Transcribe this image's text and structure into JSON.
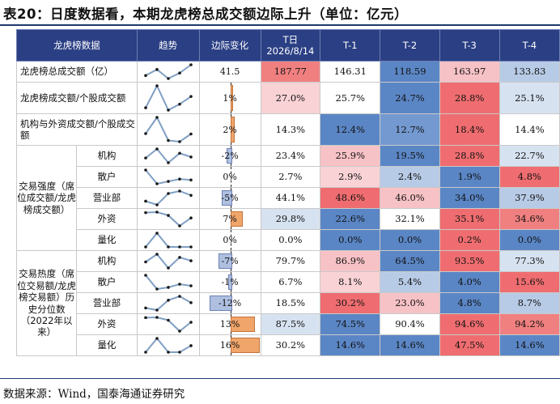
{
  "title": "表20：日度数据看，本期龙虎榜总成交额边际上升（单位：亿元）",
  "source": "数据来源：Wind，国泰海通证券研究",
  "header": {
    "name": "龙虎榜数据",
    "trend": "趋势",
    "change": "边际变化",
    "t0_line1": "T日",
    "t0_line2": "2026/8/14",
    "t1": "T-1",
    "t2": "T-2",
    "t3": "T-3",
    "t4": "T-4"
  },
  "groups": {
    "strength": "交易强度（席位成交额/龙虎榜成交额）",
    "heat": "交易热度（席位交易额/龙虎榜交易额）历史分位数（2022年以来）"
  },
  "rows": [
    {
      "label": "龙虎榜总成交额（亿）",
      "change": "41.5",
      "chg": 0,
      "spark": [
        133.83,
        163.97,
        118.59,
        146.31,
        187.77
      ],
      "cells": [
        {
          "v": "187.77",
          "bg": "#f08080"
        },
        {
          "v": "146.31",
          "bg": "#ffffff"
        },
        {
          "v": "118.59",
          "bg": "#5b86c5"
        },
        {
          "v": "163.97",
          "bg": "#f7c2c6"
        },
        {
          "v": "133.83",
          "bg": "#b8cbe6"
        }
      ]
    },
    {
      "label": "龙虎榜成交额/个股成交额",
      "change": "1%",
      "chg": 0.5,
      "spark": [
        25.1,
        28.8,
        24.7,
        25.7,
        27.0
      ],
      "cells": [
        {
          "v": "27.0%",
          "bg": "#f9d2d6"
        },
        {
          "v": "25.7%",
          "bg": "#ffffff"
        },
        {
          "v": "24.7%",
          "bg": "#5b86c5"
        },
        {
          "v": "28.8%",
          "bg": "#ef6d70"
        },
        {
          "v": "25.1%",
          "bg": "#d7e2f1"
        }
      ]
    },
    {
      "label": "机构与外资成交额/个股成交额",
      "change": "2%",
      "chg": 1,
      "spark": [
        14.4,
        18.4,
        12.7,
        12.4,
        14.3
      ],
      "cells": [
        {
          "v": "14.3%",
          "bg": "#ffffff"
        },
        {
          "v": "12.4%",
          "bg": "#5b86c5"
        },
        {
          "v": "12.7%",
          "bg": "#7399d0"
        },
        {
          "v": "18.4%",
          "bg": "#ef6d70"
        },
        {
          "v": "14.4%",
          "bg": "#ffffff"
        }
      ]
    },
    {
      "sub": "机构",
      "change": "-2%",
      "chg": -1.5,
      "spark": [
        22.7,
        28.8,
        19.5,
        25.9,
        23.4
      ],
      "cells": [
        {
          "v": "23.4%",
          "bg": "#ffffff"
        },
        {
          "v": "25.9%",
          "bg": "#f7c2c6"
        },
        {
          "v": "19.5%",
          "bg": "#5b86c5"
        },
        {
          "v": "28.8%",
          "bg": "#ef6d70"
        },
        {
          "v": "22.7%",
          "bg": "#d7e2f1"
        }
      ]
    },
    {
      "sub": "散户",
      "change": "0%",
      "chg": 0,
      "spark": [
        4.8,
        1.9,
        2.4,
        2.9,
        2.7
      ],
      "cells": [
        {
          "v": "2.7%",
          "bg": "#ffffff"
        },
        {
          "v": "2.9%",
          "bg": "#f9d2d6"
        },
        {
          "v": "2.4%",
          "bg": "#b8cbe6"
        },
        {
          "v": "1.9%",
          "bg": "#5b86c5"
        },
        {
          "v": "4.8%",
          "bg": "#ef6d70"
        }
      ]
    },
    {
      "sub": "营业部",
      "change": "-5%",
      "chg": -3.5,
      "spark": [
        37.9,
        34.0,
        46.0,
        48.6,
        44.1
      ],
      "cells": [
        {
          "v": "44.1%",
          "bg": "#ffffff"
        },
        {
          "v": "48.6%",
          "bg": "#ef6d70"
        },
        {
          "v": "46.0%",
          "bg": "#f7c2c6"
        },
        {
          "v": "34.0%",
          "bg": "#5b86c5"
        },
        {
          "v": "37.9%",
          "bg": "#b8cbe6"
        }
      ]
    },
    {
      "sub": "外资",
      "change": "7%",
      "chg": 4.5,
      "spark": [
        34.6,
        35.1,
        32.1,
        22.6,
        29.8
      ],
      "cells": [
        {
          "v": "29.8%",
          "bg": "#d7e2f1"
        },
        {
          "v": "22.6%",
          "bg": "#5b86c5"
        },
        {
          "v": "32.1%",
          "bg": "#ffffff"
        },
        {
          "v": "35.1%",
          "bg": "#ef6d70"
        },
        {
          "v": "34.6%",
          "bg": "#f08080"
        }
      ]
    },
    {
      "sub": "量化",
      "change": "0%",
      "chg": 0,
      "spark": [
        0,
        0.2,
        0,
        0,
        0
      ],
      "cells": [
        {
          "v": "0.0%",
          "bg": "#ffffff"
        },
        {
          "v": "0.0%",
          "bg": "#5b86c5"
        },
        {
          "v": "0.0%",
          "bg": "#5b86c5"
        },
        {
          "v": "0.2%",
          "bg": "#ef6d70"
        },
        {
          "v": "0.0%",
          "bg": "#5b86c5"
        }
      ]
    },
    {
      "sub": "机构",
      "change": "-7%",
      "chg": -5,
      "spark": [
        77.3,
        93.5,
        64.5,
        86.9,
        79.7
      ],
      "cells": [
        {
          "v": "79.7%",
          "bg": "#ffffff"
        },
        {
          "v": "86.9%",
          "bg": "#f7c2c6"
        },
        {
          "v": "64.5%",
          "bg": "#5b86c5"
        },
        {
          "v": "93.5%",
          "bg": "#ef6d70"
        },
        {
          "v": "77.3%",
          "bg": "#d7e2f1"
        }
      ]
    },
    {
      "sub": "散户",
      "change": "-1%",
      "chg": -1,
      "spark": [
        15.6,
        4.0,
        5.4,
        8.1,
        6.7
      ],
      "cells": [
        {
          "v": "6.7%",
          "bg": "#ffffff"
        },
        {
          "v": "8.1%",
          "bg": "#f9d2d6"
        },
        {
          "v": "5.4%",
          "bg": "#b8cbe6"
        },
        {
          "v": "4.0%",
          "bg": "#5b86c5"
        },
        {
          "v": "15.6%",
          "bg": "#ef6d70"
        }
      ]
    },
    {
      "sub": "营业部",
      "change": "-12%",
      "chg": -8.5,
      "spark": [
        8.7,
        4.8,
        23.0,
        30.2,
        18.5
      ],
      "cells": [
        {
          "v": "18.5%",
          "bg": "#ffffff"
        },
        {
          "v": "30.2%",
          "bg": "#ef6d70"
        },
        {
          "v": "23.0%",
          "bg": "#f7c2c6"
        },
        {
          "v": "4.8%",
          "bg": "#5b86c5"
        },
        {
          "v": "8.7%",
          "bg": "#b8cbe6"
        }
      ]
    },
    {
      "sub": "外资",
      "change": "13%",
      "chg": 9.5,
      "spark": [
        94.2,
        94.6,
        90.4,
        74.5,
        87.5
      ],
      "cells": [
        {
          "v": "87.5%",
          "bg": "#d7e2f1"
        },
        {
          "v": "74.5%",
          "bg": "#5b86c5"
        },
        {
          "v": "90.4%",
          "bg": "#ffffff"
        },
        {
          "v": "94.6%",
          "bg": "#ef6d70"
        },
        {
          "v": "94.2%",
          "bg": "#f08080"
        }
      ]
    },
    {
      "sub": "量化",
      "change": "16%",
      "chg": 11.5,
      "spark": [
        14.6,
        47.5,
        14.6,
        14.6,
        30.2
      ],
      "cells": [
        {
          "v": "30.2%",
          "bg": "#ffffff"
        },
        {
          "v": "14.6%",
          "bg": "#5b86c5"
        },
        {
          "v": "14.6%",
          "bg": "#5b86c5"
        },
        {
          "v": "47.5%",
          "bg": "#ef6d70"
        },
        {
          "v": "14.6%",
          "bg": "#5b86c5"
        }
      ]
    }
  ]
}
